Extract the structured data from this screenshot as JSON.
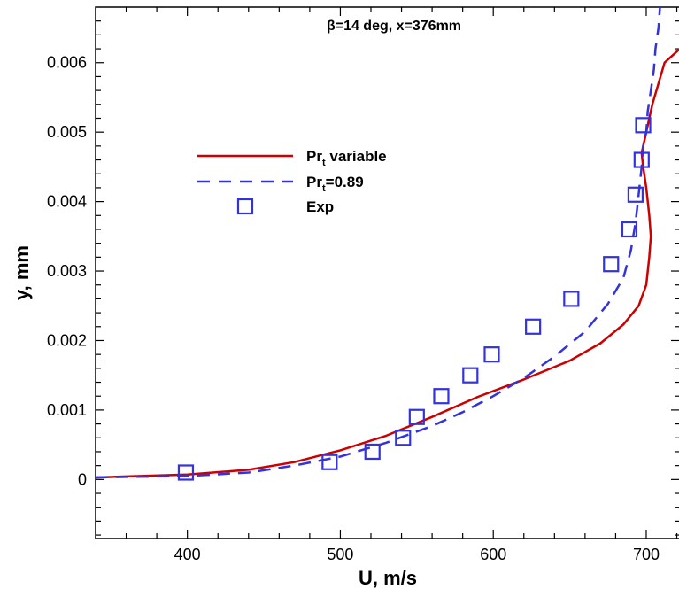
{
  "chart_data": {
    "type": "line",
    "title": "β=14 deg, x=376mm",
    "xlabel": "U, m/s",
    "ylabel": "y,  mm",
    "xlim": [
      340,
      722
    ],
    "ylim": [
      -0.00085,
      0.0068
    ],
    "xticks": [
      400,
      500,
      600,
      700
    ],
    "yticks": [
      0,
      0.001,
      0.002,
      0.003,
      0.004,
      0.005,
      0.006
    ],
    "ytick_labels": [
      "0",
      "0.001",
      "0.002",
      "0.003",
      "0.004",
      "0.005",
      "0.006"
    ],
    "legend_position": "upper-left",
    "series": [
      {
        "name": "Prt variable",
        "name_main": "Pr",
        "name_sub": "t",
        "name_rest": " variable",
        "style": "solid",
        "color": "#cc0000",
        "x": [
          340,
          400,
          440,
          470,
          500,
          530,
          560,
          590,
          620,
          650,
          670,
          685,
          695,
          700,
          702,
          703,
          702,
          700,
          698,
          697,
          699,
          700,
          702,
          704,
          708,
          712,
          722
        ],
        "y": [
          3e-05,
          7e-05,
          0.00014,
          0.00025,
          0.00042,
          0.00063,
          0.0009,
          0.00119,
          0.00144,
          0.00171,
          0.00196,
          0.00223,
          0.0025,
          0.0028,
          0.0032,
          0.0035,
          0.0038,
          0.0042,
          0.0045,
          0.0047,
          0.0049,
          0.005,
          0.0052,
          0.0054,
          0.0057,
          0.006,
          0.0062
        ]
      },
      {
        "name": "Prt=0.89",
        "name_main": "Pr",
        "name_sub": "t",
        "name_rest": "=0.89",
        "style": "dashed",
        "color": "#3333dd",
        "x": [
          340,
          400,
          440,
          470,
          500,
          530,
          560,
          580,
          600,
          620,
          640,
          660,
          675,
          685,
          690,
          693,
          695,
          697,
          698,
          700,
          701,
          703,
          705,
          706,
          708,
          709
        ],
        "y": [
          3e-05,
          5e-05,
          0.0001,
          0.0002,
          0.00033,
          0.00053,
          0.00077,
          0.00097,
          0.0012,
          0.00146,
          0.00177,
          0.00213,
          0.00253,
          0.0029,
          0.0033,
          0.0037,
          0.0041,
          0.0045,
          0.0048,
          0.005,
          0.0053,
          0.0056,
          0.0059,
          0.0062,
          0.0065,
          0.0068
        ]
      },
      {
        "name": "Exp",
        "style": "markers",
        "color": "#3333dd",
        "x": [
          399,
          493,
          521,
          541,
          550,
          566,
          585,
          599,
          626,
          651,
          677,
          689,
          693,
          697,
          698
        ],
        "y": [
          0.0001,
          0.00025,
          0.0004,
          0.0006,
          0.0009,
          0.0012,
          0.0015,
          0.0018,
          0.0022,
          0.0026,
          0.0031,
          0.0036,
          0.0041,
          0.0046,
          0.0051
        ]
      }
    ]
  }
}
